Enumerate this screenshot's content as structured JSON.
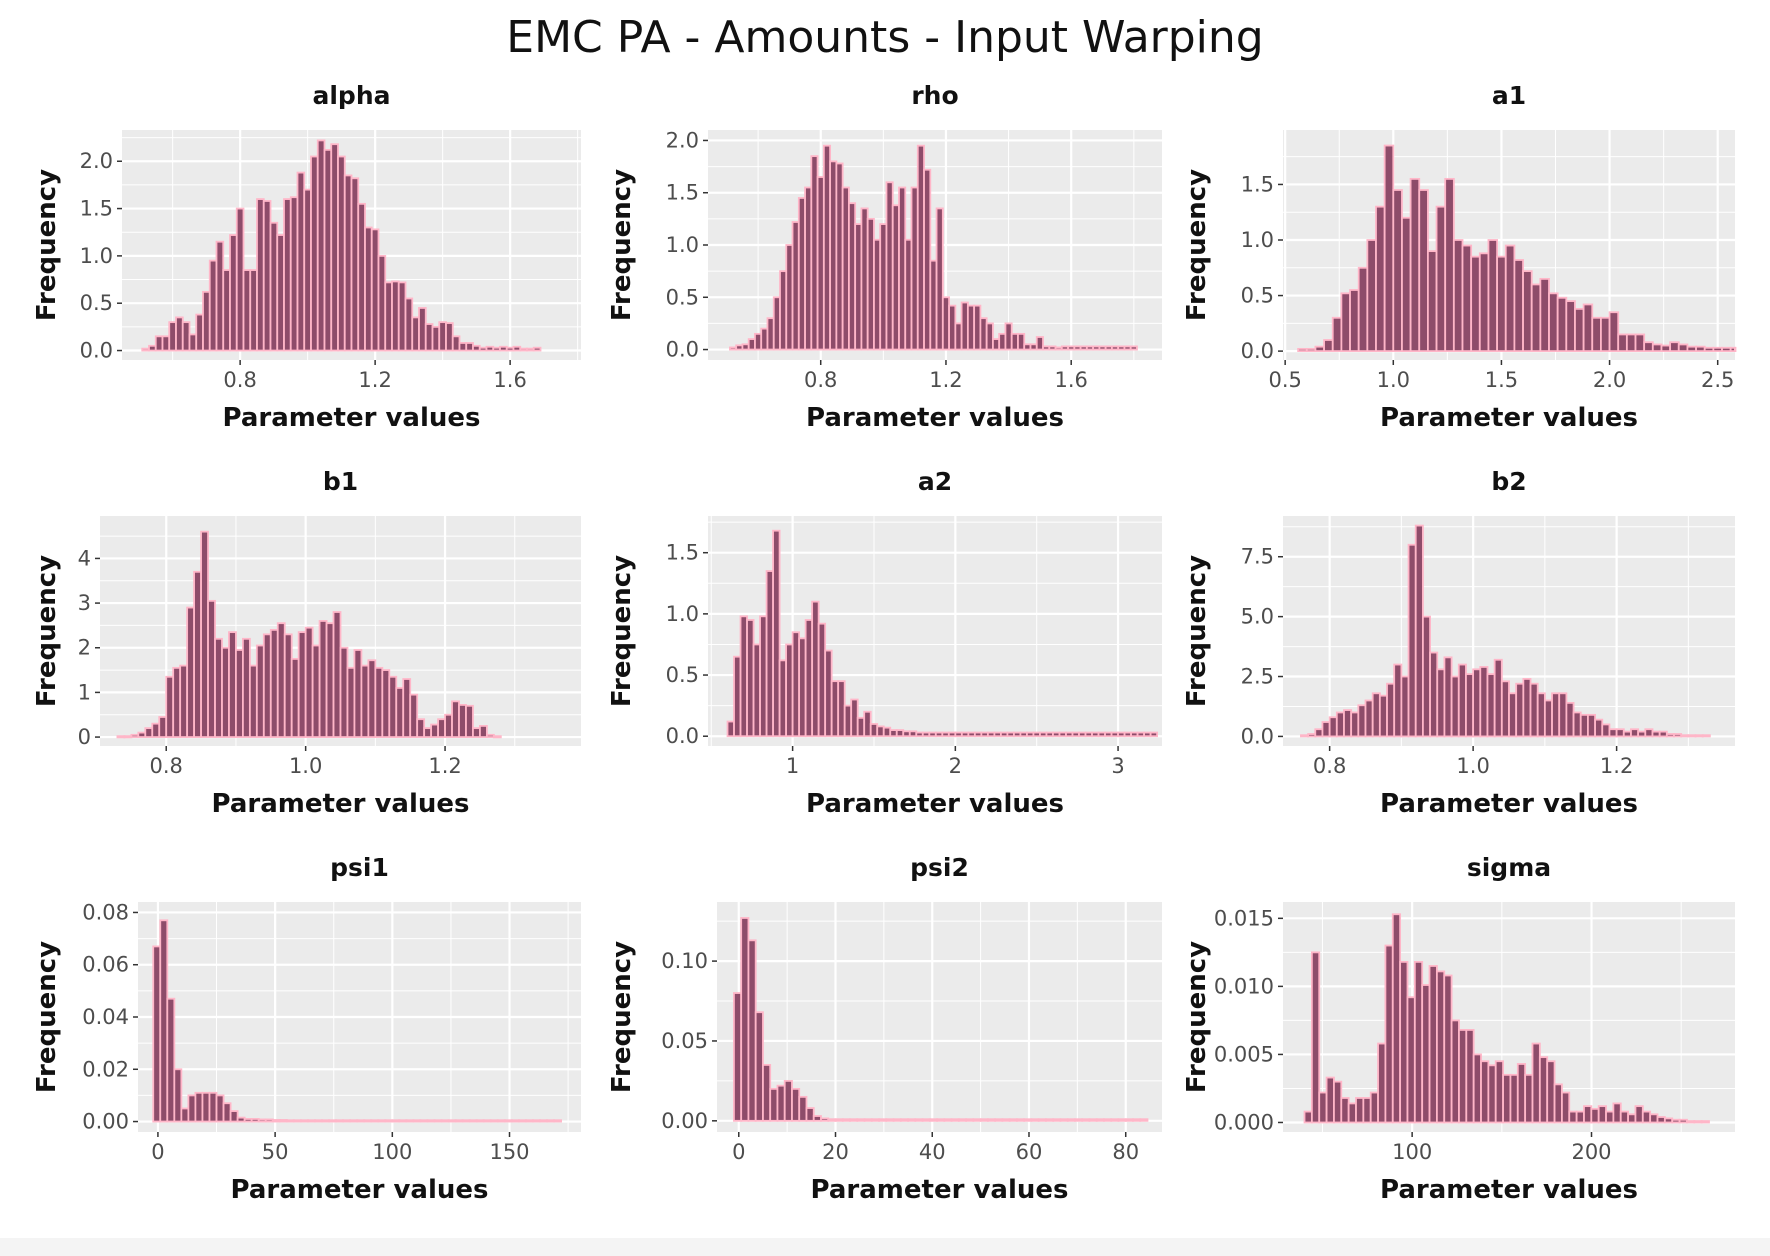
{
  "title": "EMC PA - Amounts - Input Warping",
  "style": {
    "panel_bg": "#ebebeb",
    "grid": "#ffffff",
    "bar_fill": "#8e4c6a",
    "bar_edge": "#ffb6c8",
    "text": "#333333"
  },
  "chart_data": [
    {
      "type": "bar",
      "title": "alpha",
      "xlabel": "Parameter values",
      "ylabel": "Frequency",
      "xlim": [
        0.45,
        1.81
      ],
      "ylim": [
        -0.1,
        2.33
      ],
      "xticks": [
        0.8,
        1.2,
        1.6
      ],
      "xtick_labels": [
        "0.8",
        "1.2",
        "1.6"
      ],
      "yticks": [
        0,
        0.5,
        1.0,
        1.5,
        2.0
      ],
      "ytick_labels": [
        "0.0",
        "0.5",
        "1.0",
        "1.5",
        "2.0"
      ],
      "x_start": 0.51,
      "bin_width": 0.02,
      "values": [
        0.02,
        0.05,
        0.15,
        0.15,
        0.3,
        0.35,
        0.3,
        0.17,
        0.38,
        0.62,
        0.95,
        1.15,
        0.85,
        1.22,
        1.5,
        0.85,
        0.85,
        1.6,
        1.58,
        1.35,
        1.22,
        1.6,
        1.62,
        1.88,
        1.7,
        2.05,
        2.22,
        2.12,
        2.18,
        2.05,
        1.85,
        1.82,
        1.55,
        1.3,
        1.28,
        1.0,
        0.72,
        0.73,
        0.72,
        0.55,
        0.35,
        0.45,
        0.28,
        0.25,
        0.3,
        0.29,
        0.15,
        0.08,
        0.08,
        0.05,
        0.03,
        0.04,
        0.03,
        0.04,
        0.03,
        0.04,
        0.02,
        0.02,
        0.03
      ]
    },
    {
      "type": "bar",
      "title": "rho",
      "xlabel": "Parameter values",
      "ylabel": "Frequency",
      "xlim": [
        0.44,
        1.89
      ],
      "ylim": [
        -0.1,
        2.1
      ],
      "xticks": [
        0.8,
        1.2,
        1.6
      ],
      "xtick_labels": [
        "0.8",
        "1.2",
        "1.6"
      ],
      "yticks": [
        0,
        0.5,
        1.0,
        1.5,
        2.0
      ],
      "ytick_labels": [
        "0.0",
        "0.5",
        "1.0",
        "1.5",
        "2.0"
      ],
      "x_start": 0.51,
      "bin_width": 0.02,
      "values": [
        0.02,
        0.04,
        0.05,
        0.1,
        0.15,
        0.2,
        0.3,
        0.5,
        0.75,
        1.0,
        1.22,
        1.45,
        1.55,
        1.85,
        1.65,
        1.95,
        1.8,
        1.78,
        1.55,
        1.4,
        1.2,
        1.35,
        1.25,
        1.05,
        1.2,
        1.6,
        1.38,
        1.55,
        1.05,
        1.55,
        1.95,
        1.72,
        0.85,
        1.35,
        0.5,
        0.42,
        0.25,
        0.45,
        0.42,
        0.42,
        0.3,
        0.25,
        0.1,
        0.15,
        0.25,
        0.15,
        0.15,
        0.05,
        0.05,
        0.12,
        0.03,
        0.03,
        0.02,
        0.03,
        0.03,
        0.03,
        0.03,
        0.03,
        0.03,
        0.03,
        0.03,
        0.03,
        0.03,
        0.03,
        0.03
      ]
    },
    {
      "type": "bar",
      "title": "a1",
      "xlabel": "Parameter values",
      "ylabel": "Frequency",
      "xlim": [
        0.49,
        2.58
      ],
      "ylim": [
        -0.08,
        1.99
      ],
      "xticks": [
        0.5,
        1.0,
        1.5,
        2.0,
        2.5
      ],
      "xtick_labels": [
        "0.5",
        "1.0",
        "1.5",
        "2.0",
        "2.5"
      ],
      "yticks": [
        0,
        0.5,
        1.0,
        1.5
      ],
      "ytick_labels": [
        "0.0",
        "0.5",
        "1.0",
        "1.5"
      ],
      "x_start": 0.56,
      "bin_width": 0.04,
      "values": [
        0.02,
        0.02,
        0.04,
        0.1,
        0.3,
        0.52,
        0.55,
        0.75,
        1.0,
        1.3,
        1.85,
        1.45,
        1.2,
        1.55,
        1.45,
        0.9,
        1.3,
        1.55,
        1.0,
        0.95,
        0.85,
        0.88,
        1.0,
        0.85,
        0.95,
        0.82,
        0.72,
        0.6,
        0.65,
        0.52,
        0.48,
        0.45,
        0.38,
        0.42,
        0.3,
        0.3,
        0.35,
        0.15,
        0.15,
        0.15,
        0.08,
        0.06,
        0.05,
        0.08,
        0.06,
        0.04,
        0.04,
        0.03,
        0.03,
        0.03,
        0.03,
        0.03
      ]
    },
    {
      "type": "bar",
      "title": "b1",
      "xlabel": "Parameter values",
      "ylabel": "Frequency",
      "xlim": [
        0.705,
        1.395
      ],
      "ylim": [
        -0.2,
        4.95
      ],
      "xticks": [
        0.8,
        1.0,
        1.2
      ],
      "xtick_labels": [
        "0.8",
        "1.0",
        "1.2"
      ],
      "yticks": [
        0,
        1,
        2,
        3,
        4
      ],
      "ytick_labels": [
        "0",
        "1",
        "2",
        "3",
        "4"
      ],
      "x_start": 0.73,
      "bin_width": 0.01,
      "values": [
        0.02,
        0.02,
        0.05,
        0.1,
        0.2,
        0.3,
        0.45,
        1.35,
        1.55,
        1.6,
        2.9,
        3.7,
        4.6,
        3.05,
        2.2,
        2.0,
        2.35,
        1.95,
        2.2,
        1.6,
        2.05,
        2.3,
        2.4,
        2.55,
        2.3,
        1.75,
        2.35,
        2.45,
        2.05,
        2.6,
        2.55,
        2.8,
        2.0,
        1.55,
        1.95,
        1.6,
        1.72,
        1.55,
        1.5,
        1.35,
        1.1,
        1.3,
        0.95,
        0.4,
        0.2,
        0.28,
        0.4,
        0.5,
        0.8,
        0.72,
        0.7,
        0.2,
        0.25,
        0.05,
        0.02
      ]
    },
    {
      "type": "bar",
      "title": "a2",
      "xlabel": "Parameter values",
      "ylabel": "Frequency",
      "xlim": [
        0.48,
        3.27
      ],
      "ylim": [
        -0.08,
        1.8
      ],
      "xticks": [
        1,
        2,
        3
      ],
      "xtick_labels": [
        "1",
        "2",
        "3"
      ],
      "yticks": [
        0,
        0.5,
        1.0,
        1.5
      ],
      "ytick_labels": [
        "0.0",
        "0.5",
        "1.0",
        "1.5"
      ],
      "x_start": 0.6,
      "bin_width": 0.04,
      "values": [
        0.12,
        0.65,
        0.98,
        0.95,
        0.75,
        0.98,
        1.35,
        1.68,
        0.62,
        0.75,
        0.85,
        0.8,
        0.95,
        1.1,
        0.92,
        0.7,
        0.45,
        0.45,
        0.25,
        0.3,
        0.15,
        0.2,
        0.1,
        0.08,
        0.07,
        0.05,
        0.05,
        0.04,
        0.04,
        0.03,
        0.03,
        0.03,
        0.03,
        0.03,
        0.03,
        0.03,
        0.03,
        0.03,
        0.03,
        0.03,
        0.03,
        0.03,
        0.03,
        0.03,
        0.03,
        0.03,
        0.03,
        0.03,
        0.03,
        0.03,
        0.03,
        0.03,
        0.03,
        0.03,
        0.03,
        0.03,
        0.03,
        0.03,
        0.03,
        0.03,
        0.03,
        0.03,
        0.03,
        0.03,
        0.03,
        0.03
      ]
    },
    {
      "type": "bar",
      "title": "b2",
      "xlabel": "Parameter values",
      "ylabel": "Frequency",
      "xlim": [
        0.735,
        1.365
      ],
      "ylim": [
        -0.4,
        9.2
      ],
      "xticks": [
        0.8,
        1.0,
        1.2
      ],
      "xtick_labels": [
        "0.8",
        "1.0",
        "1.2"
      ],
      "yticks": [
        0,
        2.5,
        5.0,
        7.5
      ],
      "ytick_labels": [
        "0.0",
        "2.5",
        "5.0",
        "7.5"
      ],
      "x_start": 0.76,
      "bin_width": 0.01,
      "values": [
        0.05,
        0.1,
        0.3,
        0.6,
        0.8,
        1.0,
        1.1,
        1.0,
        1.3,
        1.5,
        1.8,
        1.7,
        2.2,
        3.0,
        2.5,
        8.0,
        8.8,
        5.0,
        3.5,
        2.8,
        3.3,
        2.5,
        3.0,
        2.6,
        2.8,
        2.9,
        2.6,
        3.2,
        2.3,
        1.8,
        2.2,
        2.4,
        2.2,
        1.8,
        1.5,
        1.8,
        1.8,
        1.4,
        1.0,
        0.9,
        0.9,
        0.7,
        0.5,
        0.3,
        0.3,
        0.2,
        0.3,
        0.2,
        0.3,
        0.2,
        0.2,
        0.1,
        0.1,
        0.05,
        0.05,
        0.05,
        0.05
      ]
    },
    {
      "type": "bar",
      "title": "psi1",
      "xlabel": "Parameter values",
      "ylabel": "Frequency",
      "xlim": [
        -8.5,
        180.5
      ],
      "ylim": [
        -0.004,
        0.084
      ],
      "xticks": [
        0,
        50,
        100,
        150
      ],
      "xtick_labels": [
        "0",
        "50",
        "100",
        "150"
      ],
      "yticks": [
        0,
        0.02,
        0.04,
        0.06,
        0.08
      ],
      "ytick_labels": [
        "0.00",
        "0.02",
        "0.04",
        "0.06",
        "0.08"
      ],
      "x_start": -2,
      "bin_width": 3,
      "values": [
        0.067,
        0.077,
        0.047,
        0.02,
        0.005,
        0.01,
        0.011,
        0.011,
        0.011,
        0.01,
        0.007,
        0.004,
        0.0015,
        0.001,
        0.001,
        0.0008,
        0.0008,
        0.0006,
        0.0006,
        0.0005,
        0.0005,
        0.0005,
        0.0005,
        0.0005,
        0.0005,
        0.0005,
        0.0005,
        0.0005,
        0.0005,
        0.0005,
        0.0005,
        0.0005,
        0.0005,
        0.0005,
        0.0005,
        0.0005,
        0.0005,
        0.0005,
        0.0005,
        0.0005,
        0.0005,
        0.0005,
        0.0005,
        0.0005,
        0.0005,
        0.0005,
        0.0005,
        0.0005,
        0.0005,
        0.0005,
        0.0005,
        0.0005,
        0.0005,
        0.0005,
        0.0005,
        0.0005,
        0.0005,
        0.0005
      ]
    },
    {
      "type": "bar",
      "title": "psi2",
      "xlabel": "Parameter values",
      "ylabel": "Frequency",
      "xlim": [
        -4.5,
        87.5
      ],
      "ylim": [
        -0.007,
        0.137
      ],
      "xticks": [
        0,
        20,
        40,
        60,
        80
      ],
      "xtick_labels": [
        "0",
        "20",
        "40",
        "60",
        "80"
      ],
      "yticks": [
        0,
        0.05,
        0.1
      ],
      "ytick_labels": [
        "0.00",
        "0.05",
        "0.10"
      ],
      "x_start": -1,
      "bin_width": 1.5,
      "values": [
        0.08,
        0.127,
        0.113,
        0.068,
        0.035,
        0.02,
        0.022,
        0.025,
        0.02,
        0.015,
        0.008,
        0.003,
        0.0015,
        0.001,
        0.001,
        0.001,
        0.001,
        0.001,
        0.001,
        0.001,
        0.001,
        0.001,
        0.001,
        0.001,
        0.001,
        0.001,
        0.001,
        0.001,
        0.001,
        0.001,
        0.001,
        0.001,
        0.001,
        0.001,
        0.001,
        0.001,
        0.001,
        0.001,
        0.001,
        0.001,
        0.001,
        0.001,
        0.001,
        0.001,
        0.001,
        0.001,
        0.001,
        0.001,
        0.001,
        0.001,
        0.001,
        0.001,
        0.001,
        0.001,
        0.001,
        0.001,
        0.001
      ]
    },
    {
      "type": "bar",
      "title": "sigma",
      "xlabel": "Parameter values",
      "ylabel": "Frequency",
      "xlim": [
        28,
        280
      ],
      "ylim": [
        -0.0007,
        0.0162
      ],
      "xticks": [
        100,
        200
      ],
      "xtick_labels": [
        "100",
        "200"
      ],
      "yticks": [
        0,
        0.005,
        0.01,
        0.015
      ],
      "ytick_labels": [
        "0.000",
        "0.005",
        "0.010",
        "0.015"
      ],
      "x_start": 40,
      "bin_width": 4.1,
      "values": [
        0.0008,
        0.0125,
        0.0022,
        0.0033,
        0.003,
        0.0018,
        0.0014,
        0.0018,
        0.0018,
        0.0022,
        0.0058,
        0.013,
        0.0153,
        0.0118,
        0.0092,
        0.0118,
        0.0101,
        0.0115,
        0.0111,
        0.0108,
        0.0075,
        0.0068,
        0.0068,
        0.005,
        0.0045,
        0.0042,
        0.0045,
        0.0035,
        0.0035,
        0.0043,
        0.0035,
        0.0058,
        0.0048,
        0.0045,
        0.0028,
        0.0022,
        0.0008,
        0.0008,
        0.0012,
        0.001,
        0.0012,
        0.0008,
        0.0014,
        0.0008,
        0.0006,
        0.0012,
        0.0008,
        0.0006,
        0.0004,
        0.0003,
        0.0002,
        0.0002,
        0.0001,
        0.0001,
        0.0001
      ]
    }
  ]
}
